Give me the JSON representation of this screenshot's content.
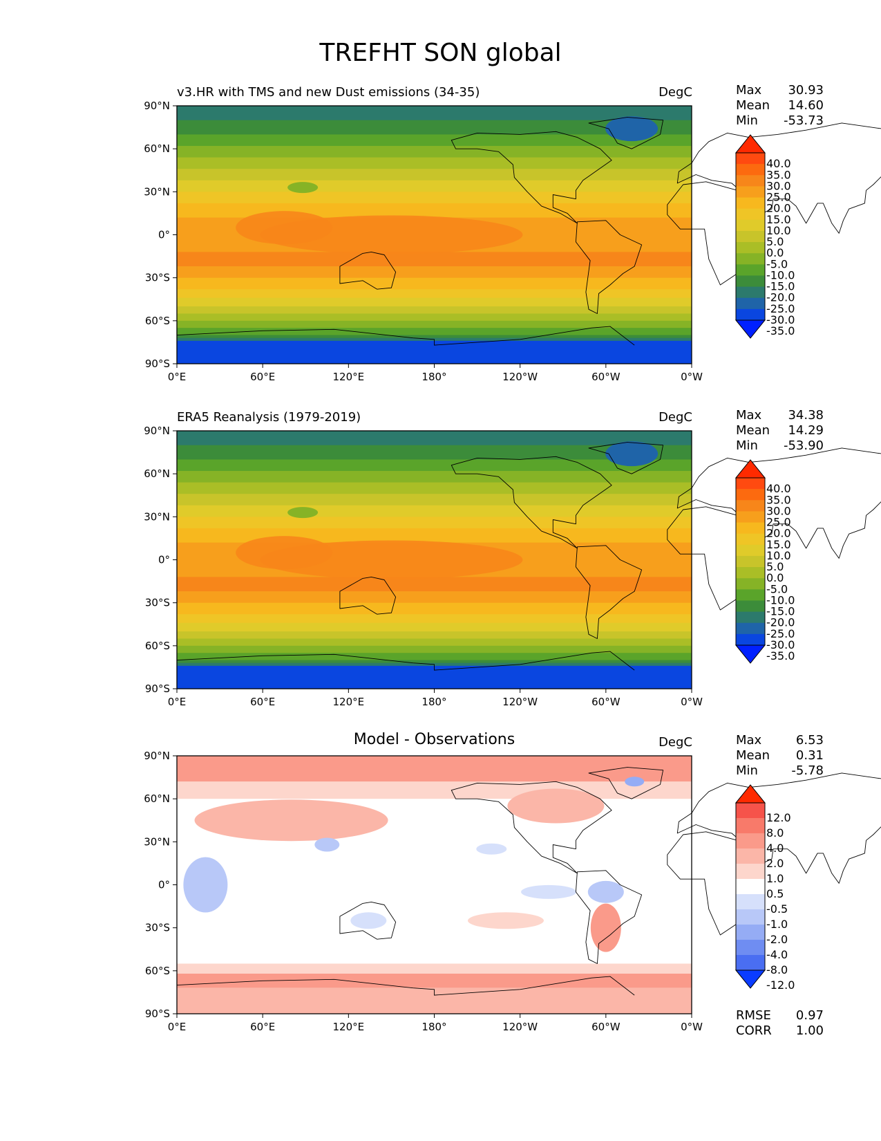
{
  "figure": {
    "title": "TREFHT SON global"
  },
  "axes": {
    "yticks": [
      "90°N",
      "60°N",
      "30°N",
      "0°",
      "30°S",
      "60°S",
      "90°S"
    ],
    "xticks": [
      "0°E",
      "60°E",
      "120°E",
      "180°",
      "120°W",
      "60°W",
      "0°W"
    ]
  },
  "panels": [
    {
      "title": "v3.HR with TMS and new Dust emissions (34-35)",
      "units": "DegC",
      "stats": {
        "max_label": "Max",
        "max": "30.93",
        "mean_label": "Mean",
        "mean": "14.60",
        "min_label": "Min",
        "min": "-53.73"
      },
      "colorbar": {
        "labels": [
          "40.0",
          "35.0",
          "30.0",
          "25.0",
          "20.0",
          "15.0",
          "10.0",
          "5.0",
          "0.0",
          "-5.0",
          "-10.0",
          "-15.0",
          "-20.0",
          "-25.0",
          "-30.0",
          "-35.0"
        ],
        "colors": [
          "#ff2a00",
          "#ff4a10",
          "#fc6a0f",
          "#f7861a",
          "#f79f1c",
          "#f7b81e",
          "#efc526",
          "#e0cb2a",
          "#c8c42a",
          "#aabe26",
          "#86b326",
          "#5aa42a",
          "#3c8c3a",
          "#2c7a6c",
          "#1f64a8",
          "#0a46e0",
          "#0020ff"
        ]
      },
      "chart_data": {
        "type": "heatmap",
        "field": "mean surface air temperature (TREFHT), SON",
        "units": "DegC",
        "xlim": [
          0,
          360
        ],
        "ylim": [
          -90,
          90
        ],
        "stats": {
          "max": 30.93,
          "mean": 14.6,
          "min": -53.73
        },
        "contour_levels": [
          -35,
          -30,
          -25,
          -20,
          -15,
          -10,
          -5,
          0,
          5,
          10,
          15,
          20,
          25,
          30,
          35,
          40
        ],
        "zonal_mean_lat": [
          -90,
          -75,
          -60,
          -45,
          -30,
          -15,
          0,
          15,
          30,
          45,
          60,
          75,
          90
        ],
        "zonal_mean_approx": [
          -50,
          -30,
          -8,
          5,
          15,
          22,
          26,
          25,
          20,
          10,
          -2,
          -12,
          -22
        ]
      }
    },
    {
      "title": "ERA5 Reanalysis (1979-2019)",
      "units": "DegC",
      "stats": {
        "max_label": "Max",
        "max": "34.38",
        "mean_label": "Mean",
        "mean": "14.29",
        "min_label": "Min",
        "min": "-53.90"
      },
      "colorbar": {
        "labels": [
          "40.0",
          "35.0",
          "30.0",
          "25.0",
          "20.0",
          "15.0",
          "10.0",
          "5.0",
          "0.0",
          "-5.0",
          "-10.0",
          "-15.0",
          "-20.0",
          "-25.0",
          "-30.0",
          "-35.0"
        ],
        "colors": [
          "#ff2a00",
          "#ff4a10",
          "#fc6a0f",
          "#f7861a",
          "#f79f1c",
          "#f7b81e",
          "#efc526",
          "#e0cb2a",
          "#c8c42a",
          "#aabe26",
          "#86b326",
          "#5aa42a",
          "#3c8c3a",
          "#2c7a6c",
          "#1f64a8",
          "#0a46e0",
          "#0020ff"
        ]
      },
      "chart_data": {
        "type": "heatmap",
        "field": "mean surface air temperature (TREFHT), SON",
        "units": "DegC",
        "xlim": [
          0,
          360
        ],
        "ylim": [
          -90,
          90
        ],
        "stats": {
          "max": 34.38,
          "mean": 14.29,
          "min": -53.9
        },
        "contour_levels": [
          -35,
          -30,
          -25,
          -20,
          -15,
          -10,
          -5,
          0,
          5,
          10,
          15,
          20,
          25,
          30,
          35,
          40
        ],
        "zonal_mean_lat": [
          -90,
          -75,
          -60,
          -45,
          -30,
          -15,
          0,
          15,
          30,
          45,
          60,
          75,
          90
        ],
        "zonal_mean_approx": [
          -50,
          -30,
          -8,
          5,
          15,
          22,
          26,
          25,
          20,
          10,
          -2,
          -12,
          -24
        ]
      }
    },
    {
      "title": "Model - Observations",
      "units": "DegC",
      "stats": {
        "max_label": "Max",
        "max": "6.53",
        "mean_label": "Mean",
        "mean": "0.31",
        "min_label": "Min",
        "min": "-5.78"
      },
      "extra_stats": {
        "rmse_label": "RMSE",
        "rmse": "0.97",
        "corr_label": "CORR",
        "corr": "1.00"
      },
      "colorbar": {
        "labels": [
          "12.0",
          "8.0",
          "4.0",
          "2.0",
          "1.0",
          "0.5",
          "-0.5",
          "-1.0",
          "-2.0",
          "-4.0",
          "-8.0",
          "-12.0"
        ],
        "colors": [
          "#ff2a00",
          "#f6534a",
          "#f87a6a",
          "#fa9a8a",
          "#fbb6a8",
          "#fdd6cc",
          "#ffffff",
          "#d6e0fb",
          "#b8c8f8",
          "#95acf5",
          "#6f8df2",
          "#4a6ef2",
          "#0a3cff"
        ]
      },
      "chart_data": {
        "type": "heatmap",
        "field": "difference, model minus observations",
        "units": "DegC",
        "xlim": [
          0,
          360
        ],
        "ylim": [
          -90,
          90
        ],
        "stats": {
          "max": 6.53,
          "mean": 0.31,
          "min": -5.78,
          "rmse": 0.97,
          "corr": 1.0
        },
        "contour_levels": [
          -12,
          -8,
          -4,
          -2,
          -1,
          -0.5,
          0.5,
          1,
          2,
          4,
          8,
          12
        ]
      }
    }
  ]
}
